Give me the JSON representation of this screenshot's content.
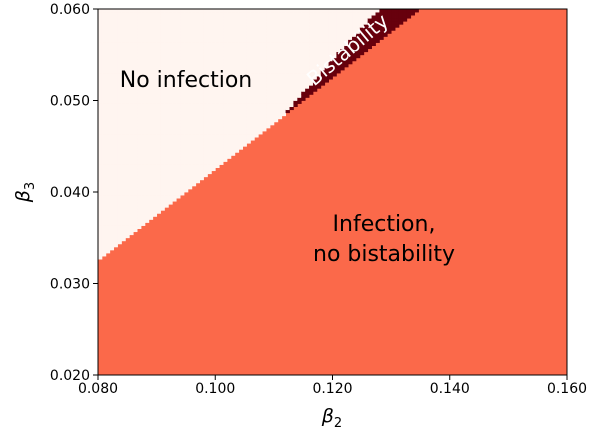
{
  "chart_data": {
    "type": "heatmap",
    "title": "",
    "xlabel_base": "β",
    "xlabel_sub": "2",
    "ylabel_base": "β",
    "ylabel_sub": "3",
    "xlim": [
      0.08,
      0.16
    ],
    "ylim": [
      0.02,
      0.06
    ],
    "xticks": [
      0.08,
      0.1,
      0.12,
      0.14,
      0.16
    ],
    "xtick_labels": [
      "0.080",
      "0.100",
      "0.120",
      "0.140",
      "0.160"
    ],
    "yticks": [
      0.02,
      0.03,
      0.04,
      0.05,
      0.06
    ],
    "ytick_labels": [
      "0.020",
      "0.030",
      "0.040",
      "0.050",
      "0.060"
    ],
    "grid": false,
    "regions": [
      {
        "label": "No infection",
        "color": "#fff5f0",
        "description_points": "above upper boundary"
      },
      {
        "label": "Bistability",
        "color": "#67000d",
        "description_points": "between boundaries"
      },
      {
        "label_lines": [
          "Infection,",
          "no bistability"
        ],
        "color": "#fb694a",
        "description_points": "below lower boundary"
      }
    ],
    "boundaries": {
      "lower": {
        "x": [
          0.08,
          0.135
        ],
        "y": [
          0.0325,
          0.06
        ]
      },
      "upper": {
        "x": [
          0.08,
          0.09,
          0.1,
          0.11,
          0.12,
          0.128
        ],
        "y": [
          0.0325,
          0.0368,
          0.0414,
          0.0472,
          0.0545,
          0.06
        ]
      }
    },
    "annotations": {
      "no_infection": "No infection",
      "bistability": "Bistability",
      "infection_line1": "Infection,",
      "infection_line2": "no bistability"
    }
  }
}
